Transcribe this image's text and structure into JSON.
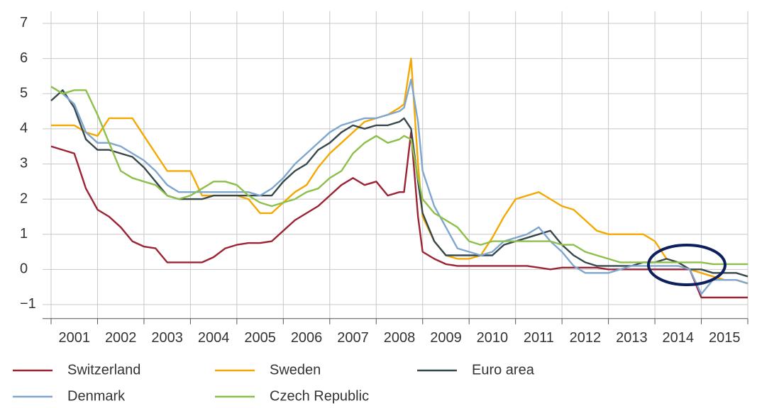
{
  "chart_data": {
    "type": "line",
    "x": [
      2001.0,
      2001.25,
      2001.5,
      2001.75,
      2002.0,
      2002.25,
      2002.5,
      2002.75,
      2003.0,
      2003.25,
      2003.5,
      2003.75,
      2004.0,
      2004.25,
      2004.5,
      2004.75,
      2005.0,
      2005.25,
      2005.5,
      2005.75,
      2006.0,
      2006.25,
      2006.5,
      2006.75,
      2007.0,
      2007.25,
      2007.5,
      2007.75,
      2008.0,
      2008.25,
      2008.5,
      2008.6,
      2008.75,
      2008.9,
      2009.0,
      2009.25,
      2009.5,
      2009.75,
      2010.0,
      2010.25,
      2010.5,
      2010.75,
      2011.0,
      2011.25,
      2011.5,
      2011.75,
      2012.0,
      2012.25,
      2012.5,
      2012.75,
      2013.0,
      2013.25,
      2013.5,
      2013.75,
      2014.0,
      2014.25,
      2014.5,
      2014.75,
      2015.0,
      2015.25,
      2015.5,
      2015.75,
      2016.0
    ],
    "series": [
      {
        "name": "Switzerland",
        "color": "#9b2335",
        "values": [
          3.5,
          3.4,
          3.3,
          2.3,
          1.7,
          1.5,
          1.2,
          0.8,
          0.65,
          0.6,
          0.2,
          0.2,
          0.2,
          0.2,
          0.35,
          0.6,
          0.7,
          0.75,
          0.75,
          0.8,
          1.1,
          1.4,
          1.6,
          1.8,
          2.1,
          2.4,
          2.6,
          2.4,
          2.5,
          2.1,
          2.2,
          2.2,
          3.9,
          1.5,
          0.5,
          0.3,
          0.15,
          0.1,
          0.1,
          0.1,
          0.1,
          0.1,
          0.1,
          0.1,
          0.05,
          0.0,
          0.05,
          0.05,
          0.05,
          0.05,
          0.0,
          0.0,
          0.0,
          0.0,
          0.0,
          0.0,
          0.0,
          0.0,
          -0.8,
          -0.8,
          -0.8,
          -0.8,
          -0.8
        ]
      },
      {
        "name": "Sweden",
        "color": "#f5a800",
        "values": [
          4.1,
          4.1,
          4.1,
          3.9,
          3.8,
          4.3,
          4.3,
          4.3,
          3.8,
          3.3,
          2.8,
          2.8,
          2.8,
          2.1,
          2.1,
          2.1,
          2.1,
          2.0,
          1.6,
          1.6,
          1.9,
          2.2,
          2.4,
          2.9,
          3.3,
          3.6,
          3.9,
          4.2,
          4.3,
          4.4,
          4.6,
          4.7,
          6.0,
          3.0,
          1.5,
          0.8,
          0.4,
          0.3,
          0.3,
          0.4,
          0.9,
          1.5,
          2.0,
          2.1,
          2.2,
          2.0,
          1.8,
          1.7,
          1.4,
          1.1,
          1.0,
          1.0,
          1.0,
          1.0,
          0.8,
          0.3,
          0.2,
          0.0,
          -0.1,
          -0.2,
          -0.3,
          -0.3,
          -0.4
        ]
      },
      {
        "name": "Euro area",
        "color": "#37484d",
        "values": [
          4.8,
          5.1,
          4.6,
          3.7,
          3.4,
          3.4,
          3.3,
          3.2,
          2.9,
          2.5,
          2.1,
          2.0,
          2.0,
          2.0,
          2.1,
          2.1,
          2.1,
          2.1,
          2.1,
          2.1,
          2.5,
          2.8,
          3.0,
          3.4,
          3.6,
          3.9,
          4.1,
          4.0,
          4.1,
          4.1,
          4.2,
          4.3,
          4.0,
          2.5,
          1.6,
          0.8,
          0.4,
          0.4,
          0.4,
          0.4,
          0.4,
          0.7,
          0.8,
          0.9,
          1.0,
          1.1,
          0.7,
          0.4,
          0.2,
          0.1,
          0.1,
          0.1,
          0.1,
          0.2,
          0.2,
          0.3,
          0.2,
          0.0,
          0.0,
          -0.1,
          -0.1,
          -0.1,
          -0.2
        ]
      },
      {
        "name": "Denmark",
        "color": "#7ea6cf",
        "values": [
          5.2,
          5.0,
          4.7,
          3.9,
          3.6,
          3.6,
          3.5,
          3.3,
          3.1,
          2.8,
          2.4,
          2.2,
          2.2,
          2.2,
          2.2,
          2.2,
          2.2,
          2.2,
          2.1,
          2.3,
          2.6,
          3.0,
          3.3,
          3.6,
          3.9,
          4.1,
          4.2,
          4.3,
          4.3,
          4.4,
          4.5,
          4.6,
          5.4,
          4.2,
          2.8,
          1.8,
          1.2,
          0.6,
          0.5,
          0.4,
          0.5,
          0.8,
          0.9,
          1.0,
          1.2,
          0.8,
          0.5,
          0.1,
          -0.1,
          -0.1,
          -0.1,
          0.0,
          0.1,
          0.1,
          0.1,
          0.1,
          0.1,
          0.0,
          -0.7,
          -0.3,
          -0.3,
          -0.3,
          -0.4
        ]
      },
      {
        "name": "Czech Republic",
        "color": "#8dc04a",
        "values": [
          5.2,
          5.0,
          5.1,
          5.1,
          4.4,
          3.6,
          2.8,
          2.6,
          2.5,
          2.4,
          2.1,
          2.0,
          2.1,
          2.3,
          2.5,
          2.5,
          2.4,
          2.1,
          1.9,
          1.8,
          1.9,
          2.0,
          2.2,
          2.3,
          2.6,
          2.8,
          3.3,
          3.6,
          3.8,
          3.6,
          3.7,
          3.8,
          3.7,
          2.6,
          2.0,
          1.6,
          1.4,
          1.2,
          0.8,
          0.7,
          0.8,
          0.8,
          0.8,
          0.8,
          0.8,
          0.8,
          0.7,
          0.7,
          0.5,
          0.4,
          0.3,
          0.2,
          0.2,
          0.2,
          0.2,
          0.2,
          0.2,
          0.2,
          0.2,
          0.15,
          0.15,
          0.15,
          0.15
        ]
      }
    ],
    "xlim": [
      2001,
      2016
    ],
    "xticks": [
      {
        "value": 2001.5,
        "label": "2001"
      },
      {
        "value": 2002.5,
        "label": "2002"
      },
      {
        "value": 2003.5,
        "label": "2003"
      },
      {
        "value": 2004.5,
        "label": "2004"
      },
      {
        "value": 2005.5,
        "label": "2005"
      },
      {
        "value": 2006.5,
        "label": "2006"
      },
      {
        "value": 2007.5,
        "label": "2007"
      },
      {
        "value": 2008.5,
        "label": "2008"
      },
      {
        "value": 2009.5,
        "label": "2009"
      },
      {
        "value": 2010.5,
        "label": "2010"
      },
      {
        "value": 2011.5,
        "label": "2011"
      },
      {
        "value": 2012.5,
        "label": "2012"
      },
      {
        "value": 2013.5,
        "label": "2013"
      },
      {
        "value": 2014.5,
        "label": "2014"
      },
      {
        "value": 2015.5,
        "label": "2015"
      }
    ],
    "xgrid": [
      2001,
      2002,
      2003,
      2004,
      2005,
      2006,
      2007,
      2008,
      2009,
      2010,
      2011,
      2012,
      2013,
      2014,
      2015,
      2016
    ],
    "ylim": [
      -1.4,
      7.35
    ],
    "yticks": [
      {
        "value": -1,
        "label": "−1"
      },
      0,
      1,
      2,
      3,
      4,
      5,
      6,
      7
    ],
    "grid": true,
    "legend": "bottom"
  }
}
